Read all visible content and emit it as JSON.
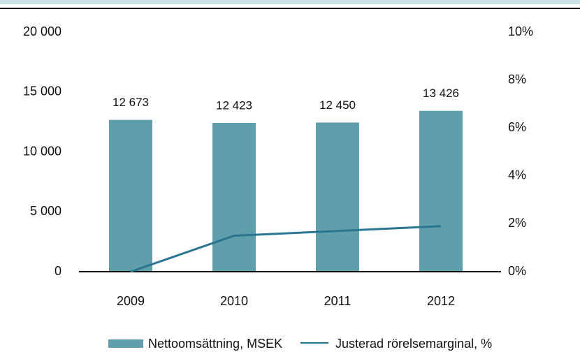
{
  "chart_data": {
    "type": "bar",
    "categories": [
      "2009",
      "2010",
      "2011",
      "2012"
    ],
    "series": [
      {
        "name": "Nettoomsättning, MSEK",
        "color": "#5f9eab",
        "type": "bar",
        "values": [
          12673,
          12423,
          12450,
          13426
        ],
        "value_labels": [
          "12 673",
          "12 423",
          "12 450",
          "13 426"
        ]
      },
      {
        "name": "Justerad rörelsemarginal, %",
        "color": "#2a7591",
        "type": "line",
        "axis": "y2",
        "values": [
          0,
          1.5,
          1.7,
          1.9
        ]
      }
    ],
    "ylim": [
      0,
      20000
    ],
    "yticks": [
      0,
      {
        "value": 5000,
        "label": "5 000"
      },
      {
        "value": 10000,
        "label": "10 000"
      },
      {
        "value": 15000,
        "label": "15 000"
      },
      {
        "value": 20000,
        "label": "20 000"
      }
    ],
    "y2lim": [
      0,
      10
    ],
    "y2ticks": [
      {
        "value": 0,
        "label": "0%"
      },
      {
        "value": 2,
        "label": "2%"
      },
      {
        "value": 4,
        "label": "4%"
      },
      {
        "value": 6,
        "label": "6%"
      },
      {
        "value": 8,
        "label": "8%"
      },
      {
        "value": 10,
        "label": "10%"
      }
    ],
    "legend": "bottom"
  }
}
